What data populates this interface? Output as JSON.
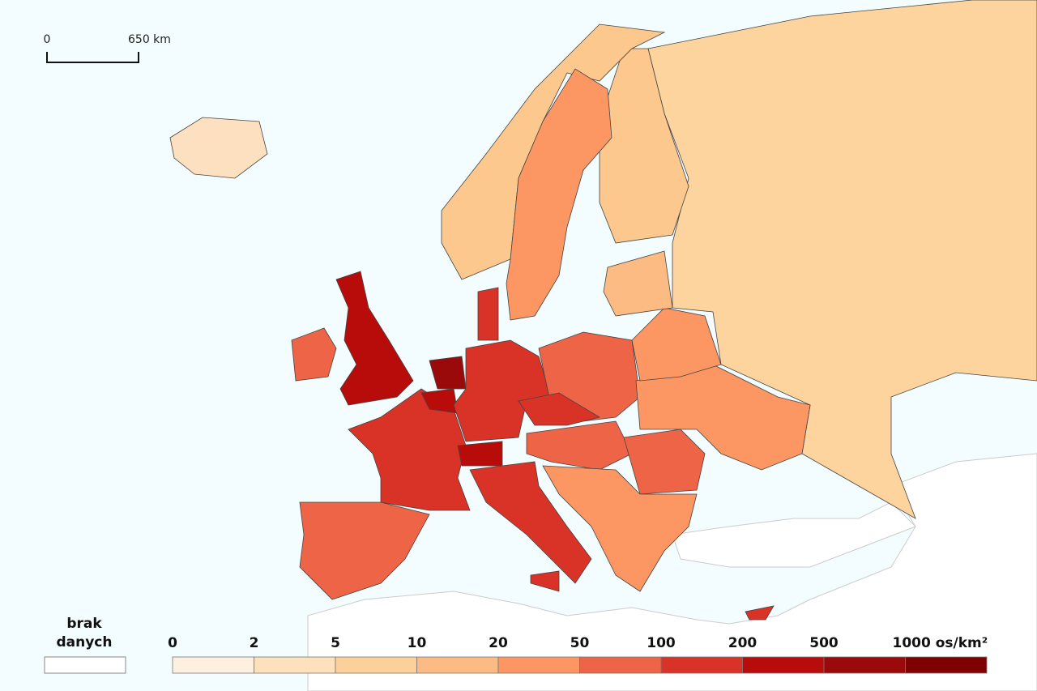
{
  "scale_bar": {
    "start": "0",
    "end": "650 km"
  },
  "legend": {
    "no_data_label": "brak danych",
    "no_data_color": "#ffffff",
    "breaks": [
      0,
      2,
      5,
      10,
      20,
      50,
      100,
      200,
      500,
      {
        "value": 1000,
        "label": "1000 os/km²"
      }
    ],
    "colors": [
      "#fef0e0",
      "#fde0bc",
      "#fdd09a",
      "#fdbb84",
      "#fc9662",
      "#ee6446",
      "#d93227",
      "#b80c0b",
      "#9b0a0a",
      "#7f0000"
    ]
  }
}
